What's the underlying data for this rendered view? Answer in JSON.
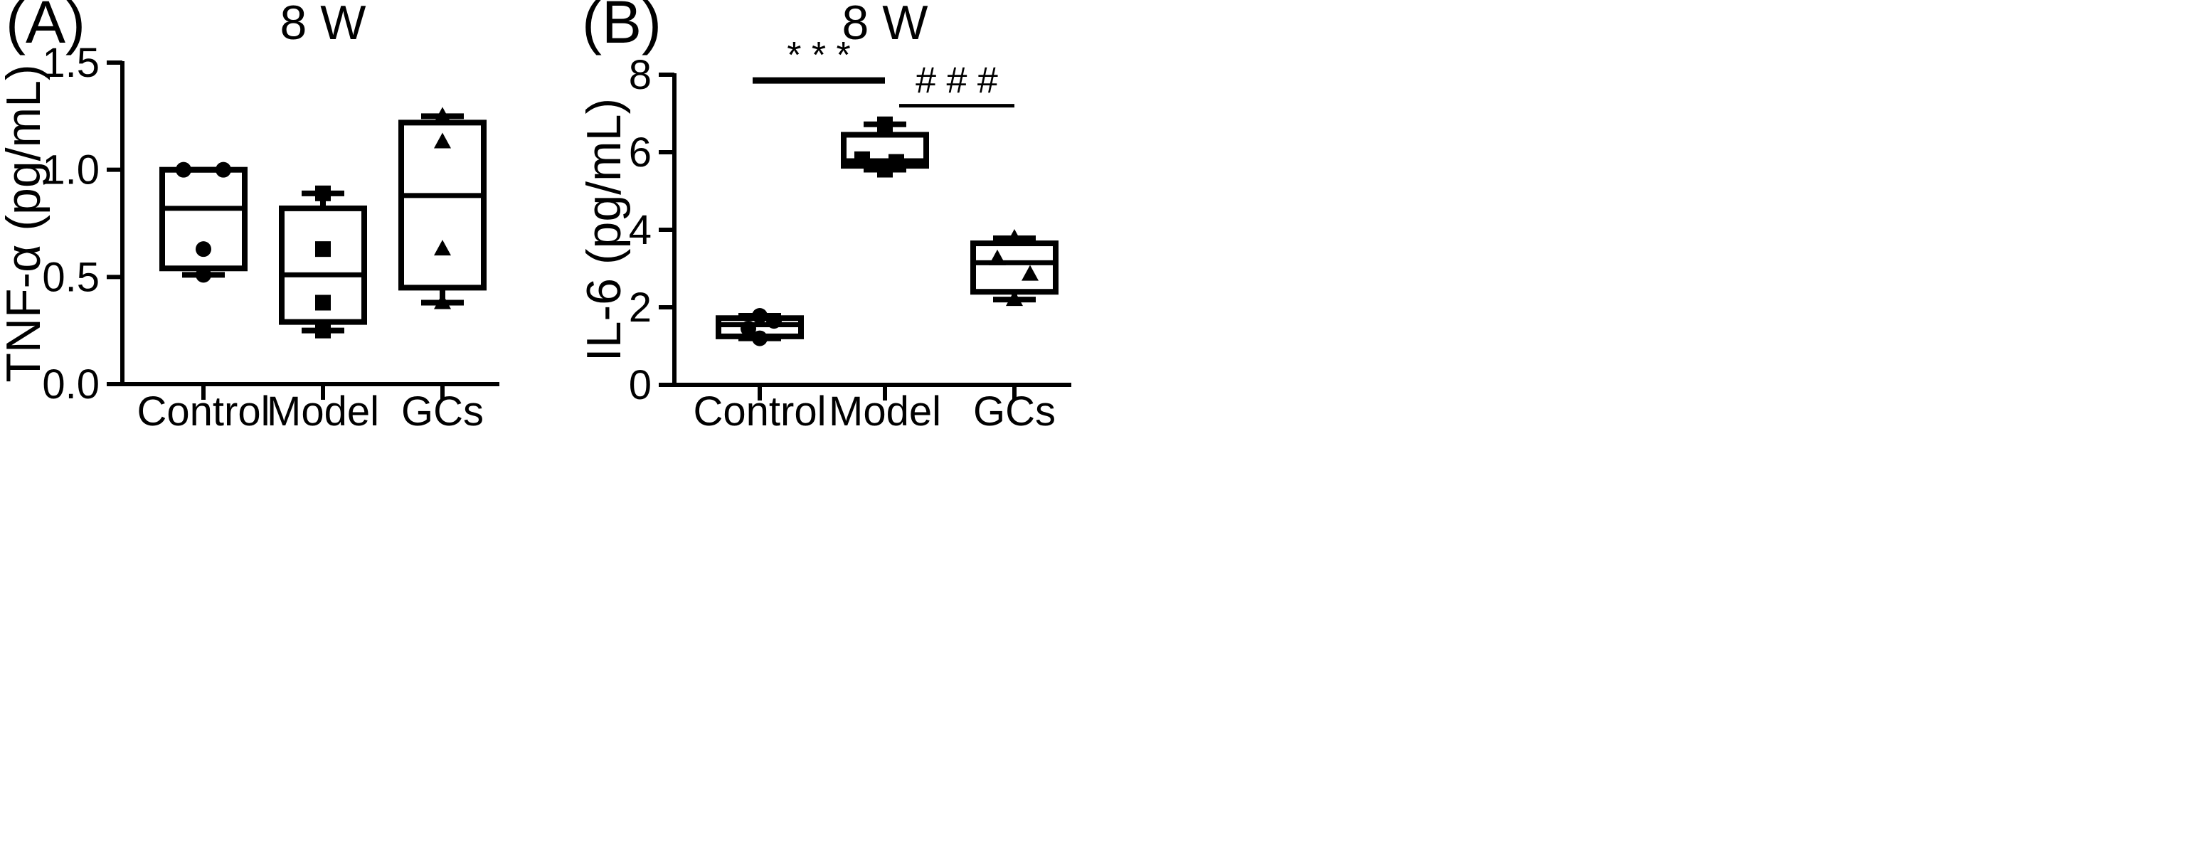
{
  "chart_data": [
    {
      "type": "box",
      "panel_label": "(A)",
      "title": "8 W",
      "xlabel": "",
      "ylabel": "TNF-α (pg/mL)",
      "ylim": [
        0,
        1.5
      ],
      "yticks": [
        "0.0",
        "0.5",
        "1.0",
        "1.5"
      ],
      "categories": [
        "Control",
        "Model",
        "GCs"
      ],
      "markers": [
        "circle",
        "square",
        "triangle"
      ],
      "boxes": [
        {
          "name": "Control",
          "min": 0.51,
          "q1": 0.54,
          "median": 0.82,
          "q3": 1.0,
          "max": 1.0,
          "points": [
            1.0,
            1.0,
            0.63,
            0.51
          ]
        },
        {
          "name": "Model",
          "min": 0.25,
          "q1": 0.29,
          "median": 0.51,
          "q3": 0.82,
          "max": 0.89,
          "points": [
            0.89,
            0.63,
            0.38,
            0.25
          ]
        },
        {
          "name": "GCs",
          "min": 0.38,
          "q1": 0.45,
          "median": 0.88,
          "q3": 1.22,
          "max": 1.25,
          "points": [
            1.25,
            1.13,
            0.63,
            0.38
          ]
        }
      ],
      "significance": []
    },
    {
      "type": "box",
      "panel_label": "(B)",
      "title": "8 W",
      "xlabel": "",
      "ylabel": "IL-6 (pg/mL)",
      "ylim": [
        0,
        8
      ],
      "yticks": [
        "0",
        "2",
        "4",
        "6",
        "8"
      ],
      "categories": [
        "Control",
        "Model",
        "GCs"
      ],
      "markers": [
        "circle",
        "square",
        "triangle"
      ],
      "boxes": [
        {
          "name": "Control",
          "min": 1.2,
          "q1": 1.25,
          "median": 1.55,
          "q3": 1.72,
          "max": 1.78,
          "points": [
            1.78,
            1.65,
            1.45,
            1.2
          ]
        },
        {
          "name": "Model",
          "min": 5.55,
          "q1": 5.65,
          "median": 5.78,
          "q3": 6.45,
          "max": 6.72,
          "points": [
            6.72,
            5.82,
            5.75,
            5.55
          ]
        },
        {
          "name": "GCs",
          "min": 2.2,
          "q1": 2.4,
          "median": 3.15,
          "q3": 3.65,
          "max": 3.78,
          "points": [
            3.78,
            3.25,
            2.85,
            2.2
          ]
        }
      ],
      "significance": [
        {
          "from": 0,
          "to": 1,
          "label": "* * *",
          "level": 7.85
        },
        {
          "from": 1,
          "to": 2,
          "label": "# # #",
          "level": 7.2
        }
      ]
    }
  ]
}
